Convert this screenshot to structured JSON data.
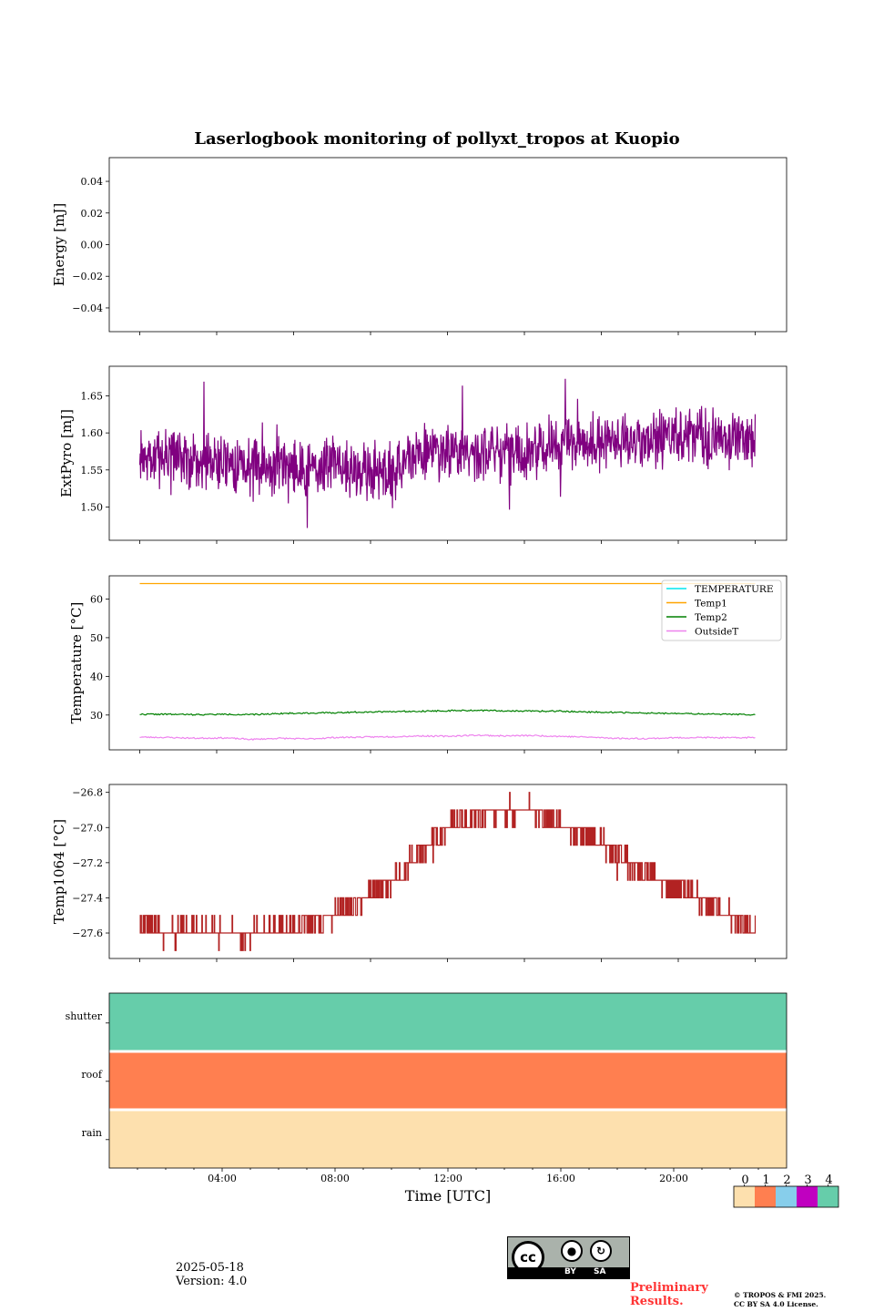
{
  "figure": {
    "title": "Laserlogbook monitoring of pollyxt_tropos at Kuopio",
    "date": "2025-05-18",
    "version": "Version: 4.0",
    "preliminary": "Preliminary Results.",
    "copyright_line1": "© TROPOS & FMI 2025.",
    "copyright_line2": "CC BY SA 4.0 License.",
    "license_by": "BY",
    "license_sa": "SA",
    "license_cc": "cc"
  },
  "chart_data": [
    {
      "type": "line",
      "ylabel": "Energy [mJ]",
      "ylim": [
        -0.055,
        0.055
      ],
      "yticks": [
        -0.04,
        -0.02,
        0.0,
        0.02,
        0.04
      ],
      "ytick_labels": [
        "−0.04",
        "−0.02",
        "0.00",
        "0.02",
        "0.04"
      ],
      "series": []
    },
    {
      "type": "line",
      "ylabel": "ExtPyro [mJ]",
      "ylim": [
        1.455,
        1.69
      ],
      "yticks": [
        1.5,
        1.55,
        1.6,
        1.65
      ],
      "ytick_labels": [
        "1.50",
        "1.55",
        "1.60",
        "1.65"
      ],
      "color": "#800080",
      "x_hours": [
        1,
        2,
        3,
        4,
        5,
        6,
        7,
        8,
        9,
        10,
        11,
        12,
        13,
        14,
        15,
        16,
        17,
        18,
        19,
        20,
        21,
        22,
        23
      ],
      "values": [
        1.56,
        1.57,
        1.56,
        1.56,
        1.555,
        1.56,
        1.55,
        1.56,
        1.55,
        1.545,
        1.575,
        1.575,
        1.575,
        1.57,
        1.575,
        1.585,
        1.58,
        1.59,
        1.59,
        1.595,
        1.595,
        1.59,
        1.59
      ]
    },
    {
      "type": "line",
      "ylabel": "Temperature [°C]",
      "ylim": [
        21,
        66
      ],
      "yticks": [
        30,
        40,
        50,
        60
      ],
      "ytick_labels": [
        "30",
        "40",
        "50",
        "60"
      ],
      "legend": "upper right",
      "x_hours": [
        1,
        2,
        3,
        4,
        5,
        6,
        7,
        8,
        9,
        10,
        11,
        12,
        13,
        14,
        15,
        16,
        17,
        18,
        19,
        20,
        21,
        22,
        23
      ],
      "series": [
        {
          "name": "TEMPERATURE",
          "color": "#00e5ee",
          "values": []
        },
        {
          "name": "Temp1",
          "color": "#ffa500",
          "values": [
            64,
            64,
            64,
            64,
            64,
            64,
            64,
            64,
            64,
            64,
            64,
            64,
            64,
            64,
            64,
            64,
            64,
            64,
            64,
            64,
            64,
            64,
            64
          ]
        },
        {
          "name": "Temp2",
          "color": "#008000",
          "values": [
            30.2,
            30.2,
            30.1,
            30.2,
            30.1,
            30.4,
            30.5,
            30.6,
            30.8,
            30.9,
            31.0,
            31.1,
            31.2,
            31.1,
            31.0,
            31.0,
            30.8,
            30.7,
            30.5,
            30.4,
            30.3,
            30.2,
            30.1
          ]
        },
        {
          "name": "OutsideT",
          "color": "#ee82ee",
          "values": [
            24.3,
            24.2,
            24.0,
            24.1,
            23.7,
            24.0,
            23.8,
            24.2,
            24.3,
            24.4,
            24.6,
            24.5,
            24.8,
            24.6,
            24.7,
            24.5,
            24.3,
            24.0,
            23.9,
            24.1,
            24.2,
            24.1,
            24.2
          ]
        }
      ]
    },
    {
      "type": "line",
      "ylabel": "Temp1064 [°C]",
      "ylim": [
        -27.745,
        -26.755
      ],
      "yticks": [
        -27.6,
        -27.4,
        -27.2,
        -27.0,
        -26.8
      ],
      "ytick_labels": [
        "−27.6",
        "−27.4",
        "−27.2",
        "−27.0",
        "−26.8"
      ],
      "color": "#b22222",
      "x_hours": [
        1,
        2,
        3,
        4,
        5,
        6,
        7,
        8,
        9,
        10,
        11,
        12,
        13,
        14,
        15,
        16,
        17,
        18,
        19,
        20,
        21,
        22,
        23
      ],
      "values": [
        -27.55,
        -27.6,
        -27.58,
        -27.6,
        -27.6,
        -27.58,
        -27.56,
        -27.5,
        -27.4,
        -27.3,
        -27.15,
        -27.0,
        -26.95,
        -26.9,
        -26.9,
        -27.0,
        -27.05,
        -27.15,
        -27.25,
        -27.35,
        -27.4,
        -27.5,
        -27.58
      ]
    },
    {
      "type": "heatmap",
      "rows": [
        "shutter",
        "roof",
        "rain"
      ],
      "row_colors": [
        "#66cdaa",
        "#ff7f50",
        "#fde0ae"
      ],
      "xlabel": "Time [UTC]",
      "xlim": [
        0,
        24
      ],
      "xticks": [
        4,
        8,
        12,
        16,
        20
      ],
      "xtick_labels": [
        "04:00",
        "08:00",
        "12:00",
        "16:00",
        "20:00"
      ],
      "colorbar": {
        "labels": [
          "0",
          "1",
          "2",
          "3",
          "4"
        ],
        "colors": [
          "#fde0ae",
          "#ff7f50",
          "#87ceeb",
          "#c000c0",
          "#66cdaa"
        ]
      }
    }
  ]
}
